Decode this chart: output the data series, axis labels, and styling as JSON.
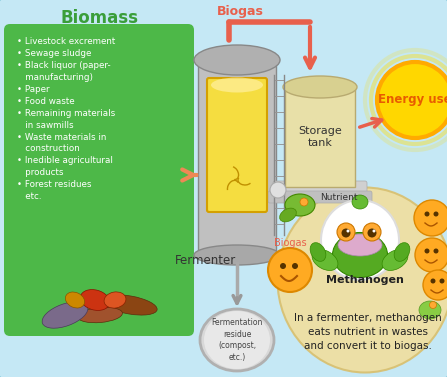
{
  "bg_color": "#c5e8f5",
  "title_biomass": "Biomass",
  "title_biomass_color": "#3a9e3a",
  "green_box_color": "#4db848",
  "biogas_label": "Biogas",
  "biogas_color": "#e8604c",
  "fermenter_label": "Fermenter",
  "storage_tank_label": "Storage\ntank",
  "energy_use_label": "Energy use",
  "energy_use_color": "#e85c00",
  "energy_circle_color1": "#ffd700",
  "energy_circle_color2": "#ffaa00",
  "fermenter_residue_label": "Fermentation\nresidue\n(compost,\netc.)",
  "nutrient_label": "Nutrient",
  "biogas_small_label": "Biogas",
  "methanogen_label": "Methanogen",
  "description": "In a fermenter, methanogen\neats nutrient in wastes\nand convert it to biogas.",
  "beige_blob_color": "#f0dfa0",
  "fermenter_body_color": "#c0c0c0",
  "fermenter_inner_color": "#f5dd40",
  "storage_tank_color": "#e8e0a8",
  "residue_circle_color": "#c8c8c8",
  "arrow_color": "#e8604c",
  "input_arrow_color": "#ee8855"
}
